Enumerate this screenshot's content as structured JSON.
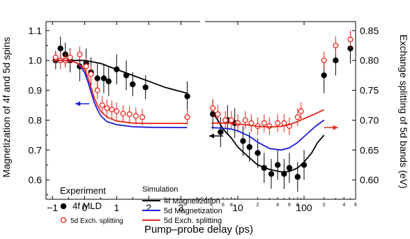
{
  "chart_data": {
    "type": "scatter",
    "x_axis": {
      "label": "Pump–probe delay (ps)",
      "segments": [
        {
          "scale": "linear",
          "range": [
            -1.2,
            3.6
          ],
          "major_ticks": [
            -1,
            0,
            1,
            2,
            3
          ],
          "tick_labels": [
            "−1",
            "0",
            "1",
            "2",
            "3"
          ]
        },
        {
          "scale": "log",
          "range": [
            3.2,
            600
          ],
          "major_ticks": [
            10,
            100
          ],
          "tick_labels": [
            "10",
            "100"
          ],
          "minor_ticks": [
            4,
            6,
            8,
            20,
            40,
            60,
            80,
            200,
            400,
            600
          ],
          "minor_tick_labels": [
            "4",
            "6",
            "8",
            "2",
            "4",
            "6",
            "8",
            "2",
            "4",
            "6"
          ]
        }
      ]
    },
    "y_left": {
      "label": "Magnetization of 4f and 5d spins",
      "range": [
        0.535,
        1.13
      ],
      "ticks": [
        0.6,
        0.7,
        0.8,
        0.9,
        1.0,
        1.1
      ],
      "tick_labels": [
        "0.6",
        "0.7",
        "0.8",
        "0.9",
        "1.0",
        "1.1"
      ]
    },
    "y_right": {
      "label": "Exchange splitting of 5d bands (eV)",
      "range": [
        0.5675,
        0.865
      ],
      "ticks": [
        0.6,
        0.65,
        0.7,
        0.75,
        0.8,
        0.85
      ],
      "tick_labels": [
        "0.60",
        "0.65",
        "0.70",
        "0.75",
        "0.80",
        "0.85"
      ]
    },
    "legend": {
      "experiment_title": "Experiment",
      "simulation_title": "Simulation",
      "experiment_items": [
        "4f MLD",
        "5d Exch. splitting"
      ],
      "simulation_items": [
        "4f Magnetization",
        "5d Magnetization",
        "5d Exch. splitting"
      ]
    },
    "colors": {
      "black": "#000000",
      "blue": "#1a1adb",
      "red": "#e8251b"
    },
    "series": [
      {
        "name": "4f MLD",
        "kind": "points",
        "marker": "filled-circle",
        "color": "#000000",
        "axis": "left",
        "points": [
          [
            -0.9,
            1.0,
            0.03
          ],
          [
            -0.75,
            1.04,
            0.04
          ],
          [
            -0.6,
            1.02,
            0.04
          ],
          [
            -0.45,
            1.0,
            0.04
          ],
          [
            -0.15,
            0.98,
            0.05
          ],
          [
            0.05,
            0.99,
            0.05
          ],
          [
            0.2,
            0.96,
            0.05
          ],
          [
            0.4,
            0.94,
            0.05
          ],
          [
            0.6,
            0.94,
            0.05
          ],
          [
            0.75,
            0.93,
            0.05
          ],
          [
            1.0,
            0.97,
            0.05
          ],
          [
            1.3,
            0.95,
            0.05
          ],
          [
            1.5,
            0.92,
            0.04
          ],
          [
            1.9,
            0.91,
            0.04
          ],
          [
            3.2,
            0.88,
            0.05
          ],
          [
            4.2,
            0.82,
            0.05
          ],
          [
            5.5,
            0.76,
            0.05
          ],
          [
            7.0,
            0.8,
            0.05
          ],
          [
            9.0,
            0.79,
            0.05
          ],
          [
            12,
            0.73,
            0.05
          ],
          [
            15,
            0.71,
            0.05
          ],
          [
            20,
            0.69,
            0.05
          ],
          [
            25,
            0.64,
            0.05
          ],
          [
            32,
            0.62,
            0.05
          ],
          [
            40,
            0.65,
            0.05
          ],
          [
            50,
            0.62,
            0.05
          ],
          [
            60,
            0.64,
            0.05
          ],
          [
            80,
            0.61,
            0.05
          ],
          [
            100,
            0.65,
            0.05
          ],
          [
            200,
            0.95,
            0.06
          ],
          [
            300,
            1.0,
            0.05
          ],
          [
            500,
            1.04,
            0.05
          ]
        ]
      },
      {
        "name": "5d Exch. splitting",
        "kind": "points",
        "marker": "open-circle",
        "color": "#e8251b",
        "axis": "right",
        "points": [
          [
            -0.9,
            0.805,
            0.012
          ],
          [
            -0.75,
            0.8,
            0.015
          ],
          [
            -0.6,
            0.8,
            0.012
          ],
          [
            -0.45,
            0.805,
            0.012
          ],
          [
            -0.15,
            0.81,
            0.013
          ],
          [
            0.05,
            0.79,
            0.014
          ],
          [
            0.2,
            0.777,
            0.014
          ],
          [
            0.4,
            0.75,
            0.015
          ],
          [
            0.55,
            0.725,
            0.015
          ],
          [
            0.7,
            0.72,
            0.015
          ],
          [
            0.85,
            0.718,
            0.015
          ],
          [
            1.0,
            0.715,
            0.015
          ],
          [
            1.2,
            0.711,
            0.014
          ],
          [
            1.4,
            0.71,
            0.014
          ],
          [
            1.6,
            0.707,
            0.014
          ],
          [
            1.8,
            0.705,
            0.014
          ],
          [
            3.2,
            0.705,
            0.013
          ],
          [
            4.2,
            0.72,
            0.015
          ],
          [
            5.0,
            0.71,
            0.015
          ],
          [
            6.5,
            0.7,
            0.015
          ],
          [
            8.0,
            0.7,
            0.015
          ],
          [
            10,
            0.695,
            0.015
          ],
          [
            13,
            0.7,
            0.015
          ],
          [
            16,
            0.695,
            0.015
          ],
          [
            20,
            0.69,
            0.015
          ],
          [
            25,
            0.695,
            0.015
          ],
          [
            30,
            0.69,
            0.015
          ],
          [
            40,
            0.695,
            0.015
          ],
          [
            50,
            0.695,
            0.015
          ],
          [
            60,
            0.69,
            0.015
          ],
          [
            80,
            0.705,
            0.015
          ],
          [
            90,
            0.715,
            0.015
          ],
          [
            200,
            0.8,
            0.015
          ],
          [
            300,
            0.825,
            0.015
          ],
          [
            500,
            0.835,
            0.015
          ]
        ]
      },
      {
        "name": "4f Magnetization",
        "kind": "line",
        "color": "#000000",
        "axis": "left",
        "points": [
          [
            -1.0,
            1.0
          ],
          [
            -0.5,
            1.0
          ],
          [
            0,
            1.0
          ],
          [
            0.5,
            0.99
          ],
          [
            1.0,
            0.97
          ],
          [
            1.5,
            0.95
          ],
          [
            2.0,
            0.93
          ],
          [
            2.5,
            0.91
          ],
          [
            3.2,
            0.89
          ],
          [
            4.0,
            0.83
          ],
          [
            5.0,
            0.8
          ],
          [
            6.0,
            0.77
          ],
          [
            8.0,
            0.74
          ],
          [
            10,
            0.71
          ],
          [
            14,
            0.68
          ],
          [
            20,
            0.65
          ],
          [
            30,
            0.635
          ],
          [
            45,
            0.627
          ],
          [
            60,
            0.628
          ],
          [
            80,
            0.64
          ],
          [
            100,
            0.66
          ],
          [
            130,
            0.69
          ],
          [
            160,
            0.725
          ],
          [
            200,
            0.75
          ]
        ]
      },
      {
        "name": "5d Magnetization",
        "kind": "line",
        "color": "#1a1adb",
        "axis": "left",
        "points": [
          [
            -1.0,
            1.0
          ],
          [
            -0.6,
            1.0
          ],
          [
            -0.4,
            0.998
          ],
          [
            -0.2,
            0.99
          ],
          [
            0,
            0.96
          ],
          [
            0.1,
            0.93
          ],
          [
            0.2,
            0.895
          ],
          [
            0.3,
            0.86
          ],
          [
            0.4,
            0.835
          ],
          [
            0.5,
            0.815
          ],
          [
            0.7,
            0.795
          ],
          [
            1.0,
            0.785
          ],
          [
            1.5,
            0.778
          ],
          [
            2.0,
            0.776
          ],
          [
            3.2,
            0.775
          ],
          [
            4.0,
            0.775
          ],
          [
            6.0,
            0.773
          ],
          [
            8.0,
            0.77
          ],
          [
            10,
            0.764
          ],
          [
            15,
            0.746
          ],
          [
            20,
            0.726
          ],
          [
            30,
            0.705
          ],
          [
            45,
            0.7
          ],
          [
            60,
            0.707
          ],
          [
            80,
            0.725
          ],
          [
            100,
            0.745
          ],
          [
            150,
            0.78
          ],
          [
            200,
            0.8
          ]
        ]
      },
      {
        "name": "5d Exch. splitting",
        "kind": "line",
        "color": "#e8251b",
        "axis": "left",
        "points": [
          [
            -1.0,
            1.0
          ],
          [
            -0.6,
            1.0
          ],
          [
            -0.4,
            0.998
          ],
          [
            -0.2,
            0.99
          ],
          [
            0,
            0.97
          ],
          [
            0.1,
            0.945
          ],
          [
            0.2,
            0.91
          ],
          [
            0.3,
            0.875
          ],
          [
            0.4,
            0.85
          ],
          [
            0.5,
            0.83
          ],
          [
            0.7,
            0.81
          ],
          [
            1.0,
            0.797
          ],
          [
            1.5,
            0.79
          ],
          [
            2.0,
            0.789
          ],
          [
            3.2,
            0.789
          ],
          [
            4.0,
            0.79
          ],
          [
            6.0,
            0.79
          ],
          [
            8.0,
            0.789
          ],
          [
            10,
            0.787
          ],
          [
            15,
            0.783
          ],
          [
            20,
            0.779
          ],
          [
            30,
            0.777
          ],
          [
            45,
            0.779
          ],
          [
            60,
            0.785
          ],
          [
            80,
            0.795
          ],
          [
            100,
            0.805
          ],
          [
            150,
            0.822
          ],
          [
            200,
            0.835
          ]
        ]
      }
    ],
    "annotations": [
      {
        "type": "arrow",
        "direction": "left",
        "color": "#1a1adb",
        "at_x": 0.15,
        "at_y": 0.855
      },
      {
        "type": "arrow",
        "direction": "left",
        "color": "#000000",
        "at_x": 6.0,
        "at_y": 0.747
      },
      {
        "type": "arrow",
        "direction": "right",
        "color": "#e8251b",
        "at_x": 200,
        "at_y": 0.775
      }
    ]
  }
}
